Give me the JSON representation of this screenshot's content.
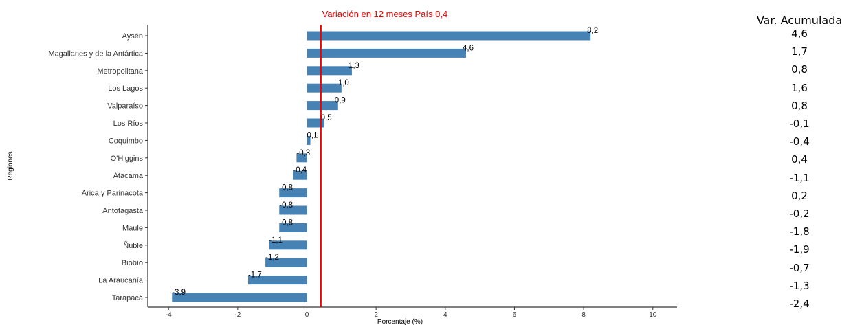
{
  "chart_data": {
    "type": "bar",
    "orientation": "horizontal",
    "title": "Variación en 12 meses País 0,4",
    "xlabel": "Porcentaje (%)",
    "ylabel": "Regiones",
    "xlim": [
      -4.6,
      10.7
    ],
    "xticks": [
      -4,
      -2,
      0,
      2,
      4,
      6,
      8,
      10
    ],
    "reference_line": {
      "value": 0.4,
      "color": "#ee0000"
    },
    "bar_color": "#4682b4",
    "categories": [
      "Aysén",
      "Magallanes y de la Antártica",
      "Metropolitana",
      "Los Lagos",
      "Valparaíso",
      "Los Ríos",
      "Coquimbo",
      "O'Higgins",
      "Atacama",
      "Arica y Parinacota",
      "Antofagasta",
      "Maule",
      "Ñuble",
      "Biobío",
      "La Araucanía",
      "Tarapacá"
    ],
    "values": [
      8.2,
      4.6,
      1.3,
      1.0,
      0.9,
      0.5,
      0.1,
      -0.3,
      -0.4,
      -0.8,
      -0.8,
      -0.8,
      -1.1,
      -1.2,
      -1.7,
      -3.9
    ],
    "value_labels": [
      "8,2",
      "4,6",
      "1,3",
      "1,0",
      "0,9",
      "0,5",
      "0,1",
      "-0,3",
      "-0,4",
      "-0,8",
      "-0,8",
      "-0,8",
      "-1,1",
      "-1,2",
      "-1,7",
      "-3,9"
    ],
    "grid": false
  },
  "side_panel": {
    "title": "Var. Acumulada",
    "values": [
      "4,6",
      "1,7",
      "0,8",
      "1,6",
      "0,8",
      "-0,1",
      "-0,4",
      "0,4",
      "-1,1",
      "0,2",
      "-0,2",
      "-1,8",
      "-1,9",
      "-0,7",
      "-1,3",
      "-2,4"
    ]
  }
}
